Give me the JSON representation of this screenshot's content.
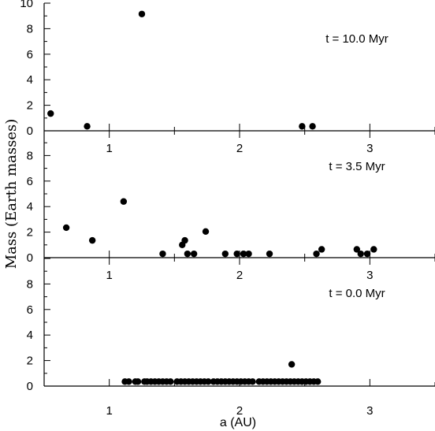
{
  "chart_data": {
    "type": "scatter",
    "xlabel": "a (AU)",
    "ylabel": "Mass (Earth masses)",
    "xlim": [
      0.5,
      3.5
    ],
    "ylim": [
      0,
      10
    ],
    "x_ticks": [
      1,
      2,
      3
    ],
    "y_ticks": [
      0,
      2,
      4,
      6,
      8,
      10
    ],
    "panels": [
      {
        "label": "t = 10.0 Myr",
        "points": [
          {
            "x": 0.55,
            "y": 1.35
          },
          {
            "x": 0.83,
            "y": 0.35
          },
          {
            "x": 1.25,
            "y": 9.15
          },
          {
            "x": 2.48,
            "y": 0.35
          },
          {
            "x": 2.56,
            "y": 0.35
          }
        ]
      },
      {
        "label": "t = 3.5 Myr",
        "points": [
          {
            "x": 0.67,
            "y": 2.35
          },
          {
            "x": 0.87,
            "y": 1.35
          },
          {
            "x": 1.11,
            "y": 4.4
          },
          {
            "x": 1.41,
            "y": 0.3
          },
          {
            "x": 1.56,
            "y": 1.0
          },
          {
            "x": 1.58,
            "y": 1.35
          },
          {
            "x": 1.6,
            "y": 0.3
          },
          {
            "x": 1.65,
            "y": 0.3
          },
          {
            "x": 1.74,
            "y": 2.05
          },
          {
            "x": 1.89,
            "y": 0.3
          },
          {
            "x": 1.98,
            "y": 0.3
          },
          {
            "x": 2.03,
            "y": 0.3
          },
          {
            "x": 2.07,
            "y": 0.3
          },
          {
            "x": 2.23,
            "y": 0.3
          },
          {
            "x": 2.59,
            "y": 0.3
          },
          {
            "x": 2.63,
            "y": 0.65
          },
          {
            "x": 2.9,
            "y": 0.65
          },
          {
            "x": 2.93,
            "y": 0.3
          },
          {
            "x": 2.98,
            "y": 0.3
          },
          {
            "x": 3.03,
            "y": 0.65
          }
        ]
      },
      {
        "label": "t = 0.0 Myr",
        "points": [
          {
            "x": 1.12,
            "y": 0.35
          },
          {
            "x": 1.15,
            "y": 0.35
          },
          {
            "x": 1.2,
            "y": 0.35
          },
          {
            "x": 1.22,
            "y": 0.35
          },
          {
            "x": 1.27,
            "y": 0.35
          },
          {
            "x": 1.29,
            "y": 0.35
          },
          {
            "x": 1.32,
            "y": 0.35
          },
          {
            "x": 1.35,
            "y": 0.35
          },
          {
            "x": 1.38,
            "y": 0.35
          },
          {
            "x": 1.41,
            "y": 0.35
          },
          {
            "x": 1.44,
            "y": 0.35
          },
          {
            "x": 1.47,
            "y": 0.35
          },
          {
            "x": 1.52,
            "y": 0.35
          },
          {
            "x": 1.55,
            "y": 0.35
          },
          {
            "x": 1.58,
            "y": 0.35
          },
          {
            "x": 1.61,
            "y": 0.35
          },
          {
            "x": 1.64,
            "y": 0.35
          },
          {
            "x": 1.67,
            "y": 0.35
          },
          {
            "x": 1.7,
            "y": 0.35
          },
          {
            "x": 1.73,
            "y": 0.35
          },
          {
            "x": 1.76,
            "y": 0.35
          },
          {
            "x": 1.8,
            "y": 0.35
          },
          {
            "x": 1.83,
            "y": 0.35
          },
          {
            "x": 1.86,
            "y": 0.35
          },
          {
            "x": 1.89,
            "y": 0.35
          },
          {
            "x": 1.92,
            "y": 0.35
          },
          {
            "x": 1.95,
            "y": 0.35
          },
          {
            "x": 1.98,
            "y": 0.35
          },
          {
            "x": 2.01,
            "y": 0.35
          },
          {
            "x": 2.04,
            "y": 0.35
          },
          {
            "x": 2.07,
            "y": 0.35
          },
          {
            "x": 2.1,
            "y": 0.35
          },
          {
            "x": 2.15,
            "y": 0.35
          },
          {
            "x": 2.18,
            "y": 0.35
          },
          {
            "x": 2.21,
            "y": 0.35
          },
          {
            "x": 2.24,
            "y": 0.35
          },
          {
            "x": 2.27,
            "y": 0.35
          },
          {
            "x": 2.3,
            "y": 0.35
          },
          {
            "x": 2.33,
            "y": 0.35
          },
          {
            "x": 2.36,
            "y": 0.35
          },
          {
            "x": 2.39,
            "y": 0.35
          },
          {
            "x": 2.42,
            "y": 0.35
          },
          {
            "x": 2.45,
            "y": 0.35
          },
          {
            "x": 2.48,
            "y": 0.35
          },
          {
            "x": 2.51,
            "y": 0.35
          },
          {
            "x": 2.54,
            "y": 0.35
          },
          {
            "x": 2.57,
            "y": 0.35
          },
          {
            "x": 2.6,
            "y": 0.35
          },
          {
            "x": 2.4,
            "y": 1.7
          }
        ]
      }
    ]
  }
}
